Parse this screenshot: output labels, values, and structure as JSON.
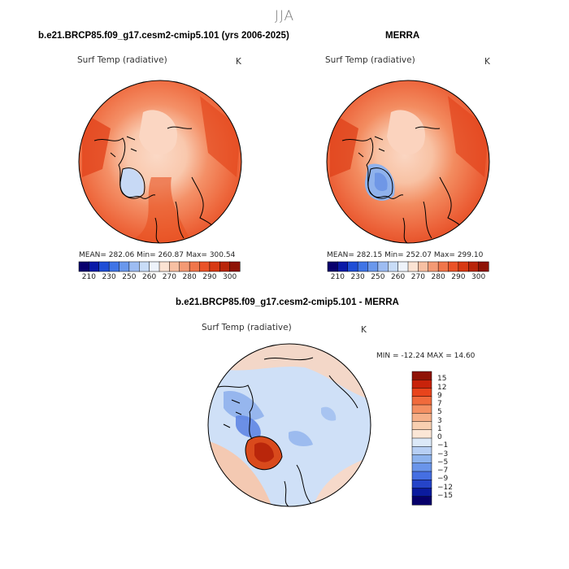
{
  "season": "JJA",
  "panels": {
    "model": {
      "title": "b.e21.BRCP85.f09_g17.cesm2-cmip5.101 (yrs 2006-2025)",
      "variable": "Surf Temp (radiative)",
      "units": "K",
      "stats_text": "MEAN= 282.06   Min= 260.87   Max= 300.54",
      "mean": 282.06,
      "min": 260.87,
      "max": 300.54
    },
    "obs": {
      "title": "MERRA",
      "variable": "Surf Temp (radiative)",
      "units": "K",
      "stats_text": "MEAN= 282.15   Min= 252.07   Max= 299.10",
      "mean": 282.15,
      "min": 252.07,
      "max": 299.1
    },
    "diff": {
      "title": "b.e21.BRCP85.f09_g17.cesm2-cmip5.101 - MERRA",
      "variable": "Surf Temp (radiative)",
      "units": "K",
      "minmax_text": "MIN = -12.24 MAX =  14.60",
      "min": -12.24,
      "max": 14.6
    }
  },
  "abs_colorbar": {
    "labels": [
      "210",
      "230",
      "250",
      "260",
      "270",
      "280",
      "290",
      "300"
    ],
    "colors": [
      "#08006e",
      "#0a1aa8",
      "#1f4ed6",
      "#3f74e6",
      "#6a98ec",
      "#9dbcf2",
      "#c8dcf7",
      "#eef3fb",
      "#fbe3d3",
      "#f7c0a3",
      "#f49a74",
      "#f0764b",
      "#ea5328",
      "#d83913",
      "#b9250a",
      "#8f1306"
    ]
  },
  "diff_colorbar": {
    "labels": [
      "15",
      "12",
      "9",
      "7",
      "5",
      "3",
      "1",
      "0",
      "−1",
      "−3",
      "−5",
      "−7",
      "−9",
      "−12",
      "−15"
    ],
    "colors": [
      "#8f1306",
      "#c8230b",
      "#e8441c",
      "#f06a3c",
      "#f48f62",
      "#f6b089",
      "#f8cfb0",
      "#fbe6d6",
      "#dce9f8",
      "#b7cff4",
      "#8db3ee",
      "#6a95ea",
      "#456fe2",
      "#2544c8",
      "#0b1b9e",
      "#07006a"
    ]
  }
}
